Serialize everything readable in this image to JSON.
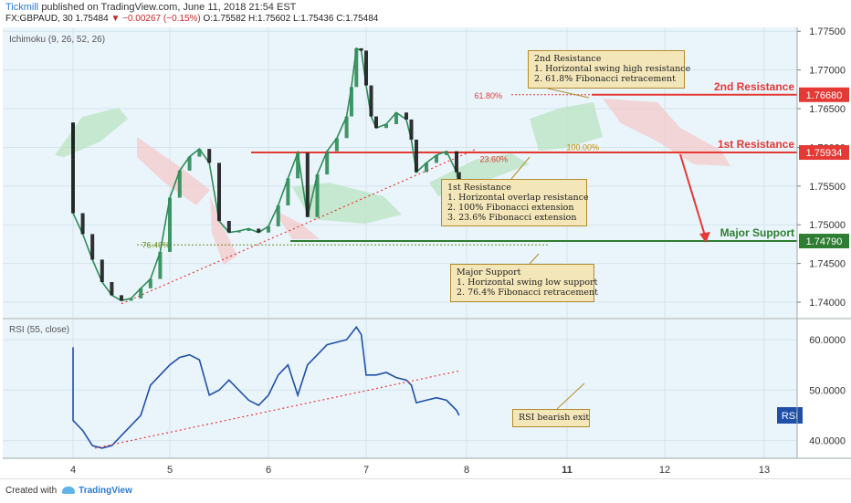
{
  "header": {
    "publisher": "Tickmill",
    "published_text": "published on TradingView.com, June 11, 2018 21:54 EST",
    "symbol": "FX:GBPAUD, 30",
    "last": "1.75484",
    "change": "▼ −0.00267 (−0.15%)",
    "ohlc": "O:1.75582 H:1.75602 L:1.75436 C:1.75484"
  },
  "indicators": {
    "ichimoku_label": "Ichimoku (9, 26, 52, 26)",
    "rsi_label": "RSI (55, close)",
    "rsi_badge": "RSI"
  },
  "footer": {
    "created_with": "Created with",
    "brand": "TradingView"
  },
  "colors": {
    "candle_up": "#2e8b57",
    "candle_down": "#1b1b1b",
    "resistance": "#e53935",
    "support": "#2e7d32",
    "rsi_line": "#1f4fa8",
    "note_bg": "#f3e6b8",
    "note_border": "#b38b2e",
    "cloud_green": "#b9e3c2",
    "cloud_red": "#f4c9c9"
  },
  "annotations": {
    "res2_label": "2nd Resistance",
    "res2_price": "1.76680",
    "res1_label": "1st Resistance",
    "res1_price": "1.75934",
    "support_label": "Major Support",
    "support_price": "1.74790",
    "last_price": "1.75484",
    "fib_618": "61.80%",
    "fib_100": "100.00%",
    "fib_236": "23.60%",
    "fib_764": "76.40%",
    "rsi_exit": "RSI bearish exit"
  },
  "notes": {
    "res2": [
      "2nd Resistance",
      "1. Horizontal swing high resistance",
      "2. 61.8% Fibonacci retracement"
    ],
    "res1": [
      "1st Resistance",
      "1. Horizontal overlap resistance",
      "2. 100% Fibonacci extension",
      "3. 23.6% Fibonacci extension"
    ],
    "support": [
      "Major Support",
      "1. Horizontal swing low support",
      "2. 76.4% Fibonacci retracement"
    ]
  },
  "chart_data": {
    "type": "line",
    "title": "FX:GBPAUD, 30",
    "price_axis": {
      "ticks": [
        "1.77500",
        "1.77000",
        "1.76500",
        "1.76000",
        "1.75500",
        "1.75000",
        "1.74500",
        "1.74000"
      ],
      "range": [
        1.738,
        1.7755
      ]
    },
    "rsi_axis": {
      "ticks": [
        "60.0000",
        "50.0000",
        "40.0000"
      ],
      "range": [
        36.5,
        64
      ]
    },
    "date_ticks": [
      "4",
      "5",
      "6",
      "7",
      "8",
      "11",
      "12",
      "13"
    ],
    "price_series": [
      [
        0,
        1.7598
      ],
      [
        0.2,
        1.7632
      ],
      [
        0.4,
        1.7618
      ],
      [
        0.6,
        1.7625
      ],
      [
        0.8,
        1.7602
      ],
      [
        1.0,
        1.7585
      ],
      [
        1.2,
        1.7545
      ],
      [
        1.4,
        1.7515
      ],
      [
        1.6,
        1.7488
      ],
      [
        1.8,
        1.7455
      ],
      [
        2.0,
        1.7426
      ],
      [
        2.2,
        1.7409
      ],
      [
        2.4,
        1.7402
      ],
      [
        2.6,
        1.7405
      ],
      [
        2.8,
        1.7418
      ],
      [
        3.0,
        1.743
      ],
      [
        3.2,
        1.7465
      ],
      [
        3.4,
        1.7535
      ],
      [
        3.6,
        1.757
      ],
      [
        3.8,
        1.7588
      ],
      [
        4.0,
        1.7598
      ],
      [
        4.2,
        1.758
      ],
      [
        4.4,
        1.7505
      ],
      [
        4.6,
        1.749
      ],
      [
        4.8,
        1.7492
      ],
      [
        5.0,
        1.7495
      ],
      [
        5.2,
        1.749
      ],
      [
        5.4,
        1.7498
      ],
      [
        5.6,
        1.7525
      ],
      [
        5.8,
        1.756
      ],
      [
        6.0,
        1.7593
      ],
      [
        6.2,
        1.751
      ],
      [
        6.4,
        1.7565
      ],
      [
        6.6,
        1.7595
      ],
      [
        6.8,
        1.7612
      ],
      [
        7.0,
        1.764
      ],
      [
        7.1,
        1.7678
      ],
      [
        7.2,
        1.7728
      ],
      [
        7.3,
        1.7725
      ],
      [
        7.4,
        1.768
      ],
      [
        7.5,
        1.764
      ],
      [
        7.6,
        1.7625
      ],
      [
        7.8,
        1.763
      ],
      [
        8.0,
        1.7645
      ],
      [
        8.2,
        1.7636
      ],
      [
        8.3,
        1.761
      ],
      [
        8.4,
        1.7568
      ],
      [
        8.6,
        1.758
      ],
      [
        8.8,
        1.759
      ],
      [
        9.0,
        1.7595
      ],
      [
        9.2,
        1.7568
      ],
      [
        9.25,
        1.75484
      ]
    ],
    "rsi_series": [
      [
        0,
        54.5
      ],
      [
        0.2,
        58.5
      ],
      [
        0.4,
        56.0
      ],
      [
        0.6,
        52.0
      ],
      [
        0.8,
        54.0
      ],
      [
        1.0,
        50.0
      ],
      [
        1.2,
        46.0
      ],
      [
        1.4,
        44.0
      ],
      [
        1.6,
        42.0
      ],
      [
        1.8,
        39.0
      ],
      [
        2.0,
        38.5
      ],
      [
        2.2,
        39.0
      ],
      [
        2.4,
        41.0
      ],
      [
        2.6,
        43.0
      ],
      [
        2.8,
        45.0
      ],
      [
        3.0,
        51.0
      ],
      [
        3.2,
        53.0
      ],
      [
        3.4,
        55.0
      ],
      [
        3.6,
        56.5
      ],
      [
        3.8,
        57.0
      ],
      [
        4.0,
        56.0
      ],
      [
        4.2,
        49.0
      ],
      [
        4.4,
        50.0
      ],
      [
        4.6,
        52.0
      ],
      [
        4.8,
        50.0
      ],
      [
        5.0,
        48.0
      ],
      [
        5.2,
        47.0
      ],
      [
        5.4,
        49.0
      ],
      [
        5.6,
        53.0
      ],
      [
        5.8,
        55.0
      ],
      [
        6.0,
        49.0
      ],
      [
        6.2,
        55.0
      ],
      [
        6.4,
        57.0
      ],
      [
        6.6,
        59.0
      ],
      [
        6.8,
        59.5
      ],
      [
        7.0,
        60.0
      ],
      [
        7.2,
        62.5
      ],
      [
        7.3,
        61.0
      ],
      [
        7.4,
        53.0
      ],
      [
        7.6,
        53.0
      ],
      [
        7.8,
        53.5
      ],
      [
        8.0,
        52.5
      ],
      [
        8.2,
        52.0
      ],
      [
        8.3,
        51.0
      ],
      [
        8.4,
        47.5
      ],
      [
        8.6,
        48.0
      ],
      [
        8.8,
        48.5
      ],
      [
        9.0,
        48.0
      ],
      [
        9.2,
        46.0
      ],
      [
        9.25,
        45.0
      ]
    ],
    "levels": {
      "resistance_2": 1.7668,
      "resistance_1": 1.75934,
      "major_support": 1.7479,
      "fib_76_4": 1.7474,
      "fib_61_8": 1.7668,
      "fib_23_6": 1.7593
    },
    "trendlines": {
      "price_support": [
        [
          2.4,
          1.7398
        ],
        [
          9.6,
          1.7598
        ]
      ],
      "rsi_support": [
        [
          1.85,
          38.5
        ],
        [
          9.25,
          53.8
        ]
      ]
    }
  }
}
